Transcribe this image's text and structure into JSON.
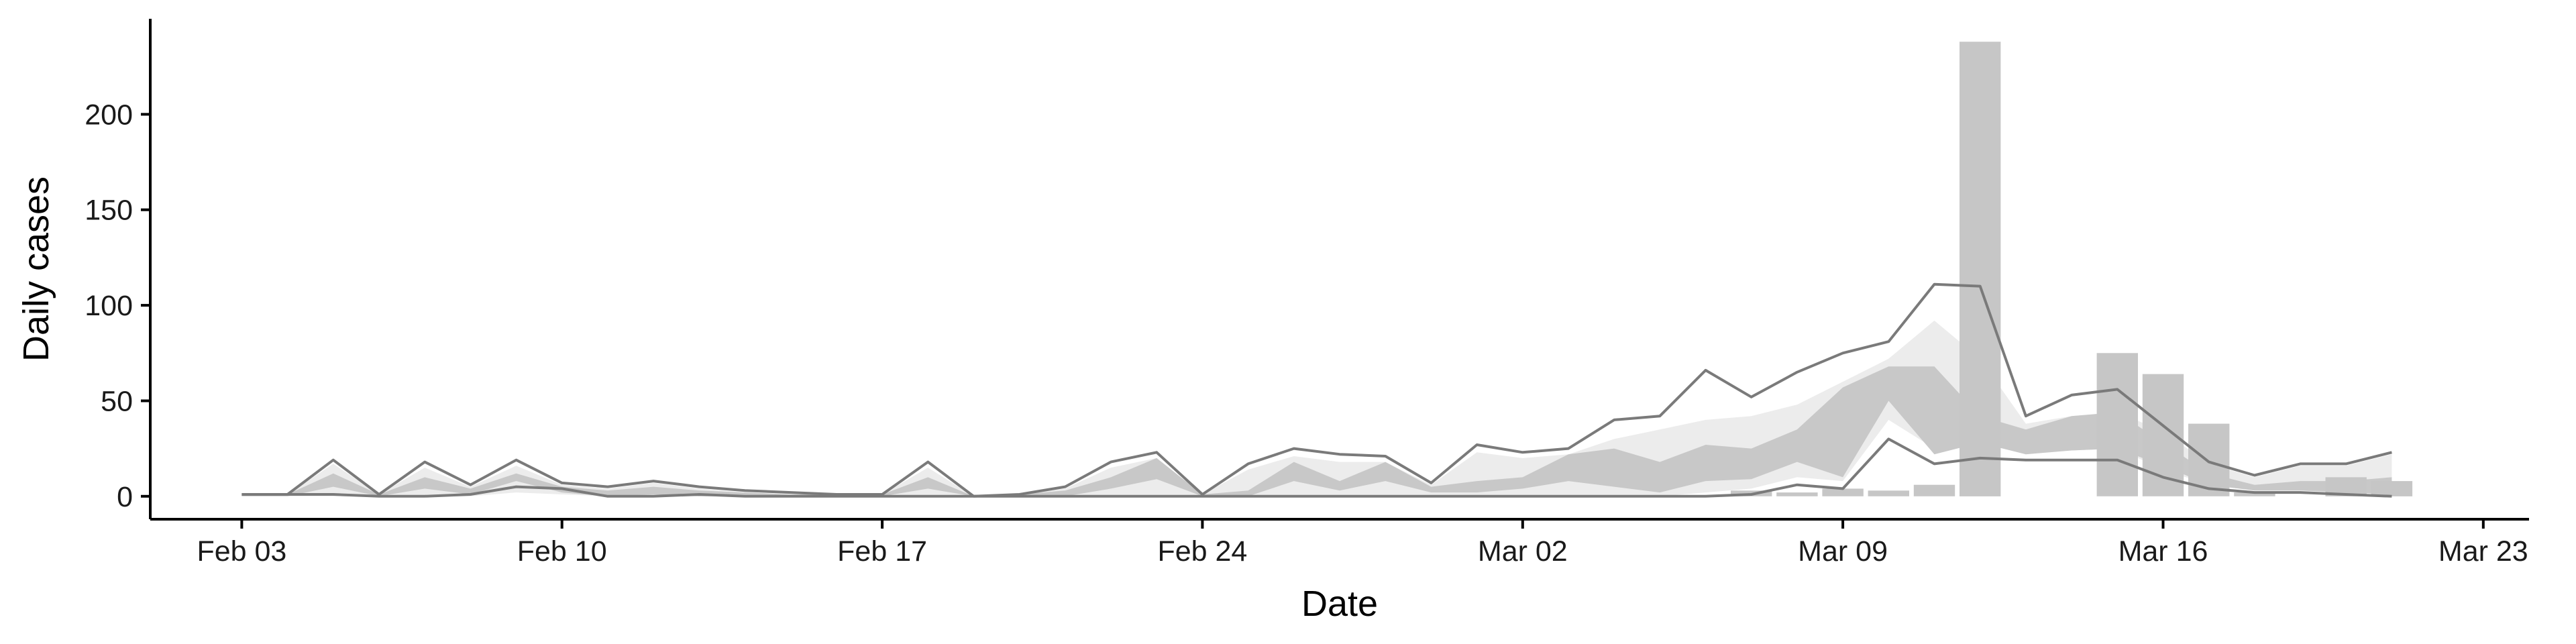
{
  "chart_data": {
    "type": "area",
    "xlabel": "Date",
    "ylabel": "Daily cases",
    "x_start": "2020-02-03",
    "x": [
      "2020-02-03",
      "2020-02-04",
      "2020-02-05",
      "2020-02-06",
      "2020-02-07",
      "2020-02-08",
      "2020-02-09",
      "2020-02-10",
      "2020-02-11",
      "2020-02-12",
      "2020-02-13",
      "2020-02-14",
      "2020-02-15",
      "2020-02-16",
      "2020-02-17",
      "2020-02-18",
      "2020-02-19",
      "2020-02-20",
      "2020-02-21",
      "2020-02-22",
      "2020-02-23",
      "2020-02-24",
      "2020-02-25",
      "2020-02-26",
      "2020-02-27",
      "2020-02-28",
      "2020-02-29",
      "2020-03-01",
      "2020-03-02",
      "2020-03-03",
      "2020-03-04",
      "2020-03-05",
      "2020-03-06",
      "2020-03-07",
      "2020-03-08",
      "2020-03-09",
      "2020-03-10",
      "2020-03-11",
      "2020-03-12",
      "2020-03-13",
      "2020-03-14",
      "2020-03-15",
      "2020-03-16",
      "2020-03-17",
      "2020-03-18",
      "2020-03-19",
      "2020-03-20",
      "2020-03-21"
    ],
    "xlim": [
      "2020-02-01",
      "2020-03-24"
    ],
    "ylim": [
      -12,
      250
    ],
    "x_ticks": [
      {
        "date": "2020-02-03",
        "label": "Feb 03"
      },
      {
        "date": "2020-02-10",
        "label": "Feb 10"
      },
      {
        "date": "2020-02-17",
        "label": "Feb 17"
      },
      {
        "date": "2020-02-24",
        "label": "Feb 24"
      },
      {
        "date": "2020-03-02",
        "label": "Mar 02"
      },
      {
        "date": "2020-03-09",
        "label": "Mar 09"
      },
      {
        "date": "2020-03-16",
        "label": "Mar 16"
      },
      {
        "date": "2020-03-23",
        "label": "Mar 23"
      }
    ],
    "y_ticks": [
      {
        "value": 0,
        "label": "0"
      },
      {
        "value": 50,
        "label": "50"
      },
      {
        "value": 100,
        "label": "100"
      },
      {
        "value": 150,
        "label": "150"
      },
      {
        "value": 200,
        "label": "200"
      }
    ],
    "bars": {
      "x": [
        "2020-03-07",
        "2020-03-08",
        "2020-03-09",
        "2020-03-10",
        "2020-03-11",
        "2020-03-12",
        "2020-03-15",
        "2020-03-16",
        "2020-03-17",
        "2020-03-18",
        "2020-03-20",
        "2020-03-21"
      ],
      "values": [
        3,
        2,
        4,
        3,
        6,
        238,
        75,
        64,
        38,
        2,
        10,
        8
      ],
      "color": "#c6c6c6"
    },
    "upper_line": {
      "values": [
        1,
        1,
        19,
        1,
        18,
        6,
        19,
        7,
        5,
        8,
        5,
        3,
        2,
        1,
        1,
        18,
        0,
        1,
        5,
        18,
        23,
        1,
        17,
        25,
        22,
        21,
        7,
        27,
        23,
        25,
        40,
        42,
        66,
        52,
        65,
        75,
        81,
        111,
        110,
        42,
        53,
        56,
        37,
        18,
        11,
        17,
        17,
        23
      ],
      "color": "#7a7a7a"
    },
    "lower_line": {
      "values": [
        1,
        1,
        1,
        0,
        0,
        1,
        5,
        4,
        0,
        0,
        1,
        0,
        0,
        0,
        0,
        0,
        0,
        0,
        0,
        0,
        0,
        0,
        0,
        0,
        0,
        0,
        0,
        0,
        0,
        0,
        0,
        0,
        0,
        1,
        6,
        4,
        30,
        17,
        20,
        19,
        19,
        19,
        10,
        4,
        2,
        2,
        1,
        0
      ],
      "color": "#7a7a7a"
    },
    "outer_band": {
      "upper": [
        1,
        1,
        17,
        1,
        15,
        5,
        16,
        6,
        4,
        7,
        4,
        2,
        1,
        1,
        1,
        15,
        0,
        1,
        4,
        15,
        20,
        1,
        14,
        21,
        18,
        18,
        6,
        23,
        20,
        22,
        30,
        35,
        40,
        42,
        48,
        60,
        72,
        92,
        72,
        38,
        42,
        44,
        34,
        17,
        10,
        16,
        16,
        22
      ],
      "lower": [
        0,
        0,
        0,
        0,
        0,
        0,
        2,
        1,
        0,
        0,
        0,
        0,
        0,
        0,
        0,
        0,
        0,
        0,
        0,
        0,
        0,
        0,
        0,
        0,
        0,
        0,
        0,
        0,
        0,
        0,
        0,
        0,
        2,
        4,
        10,
        8,
        40,
        25,
        28,
        24,
        24,
        25,
        14,
        6,
        3,
        3,
        2,
        1
      ],
      "color": "#ececec"
    },
    "inner_band": {
      "upper": [
        1,
        1,
        12,
        1,
        10,
        4,
        12,
        5,
        3,
        5,
        3,
        2,
        1,
        1,
        1,
        10,
        0,
        1,
        3,
        10,
        20,
        1,
        3,
        18,
        8,
        18,
        5,
        8,
        10,
        22,
        25,
        18,
        27,
        25,
        35,
        57,
        68,
        68,
        42,
        35,
        42,
        44,
        28,
        12,
        6,
        8,
        8,
        10
      ],
      "lower": [
        0,
        0,
        5,
        0,
        4,
        1,
        8,
        2,
        0,
        1,
        0,
        0,
        0,
        0,
        0,
        4,
        0,
        0,
        0,
        4,
        9,
        0,
        0,
        8,
        3,
        8,
        2,
        2,
        4,
        8,
        5,
        2,
        8,
        9,
        18,
        10,
        50,
        22,
        28,
        22,
        24,
        25,
        16,
        6,
        3,
        3,
        2,
        1
      ],
      "color": "#c8c8c8"
    },
    "grid": false,
    "legend": "none"
  }
}
